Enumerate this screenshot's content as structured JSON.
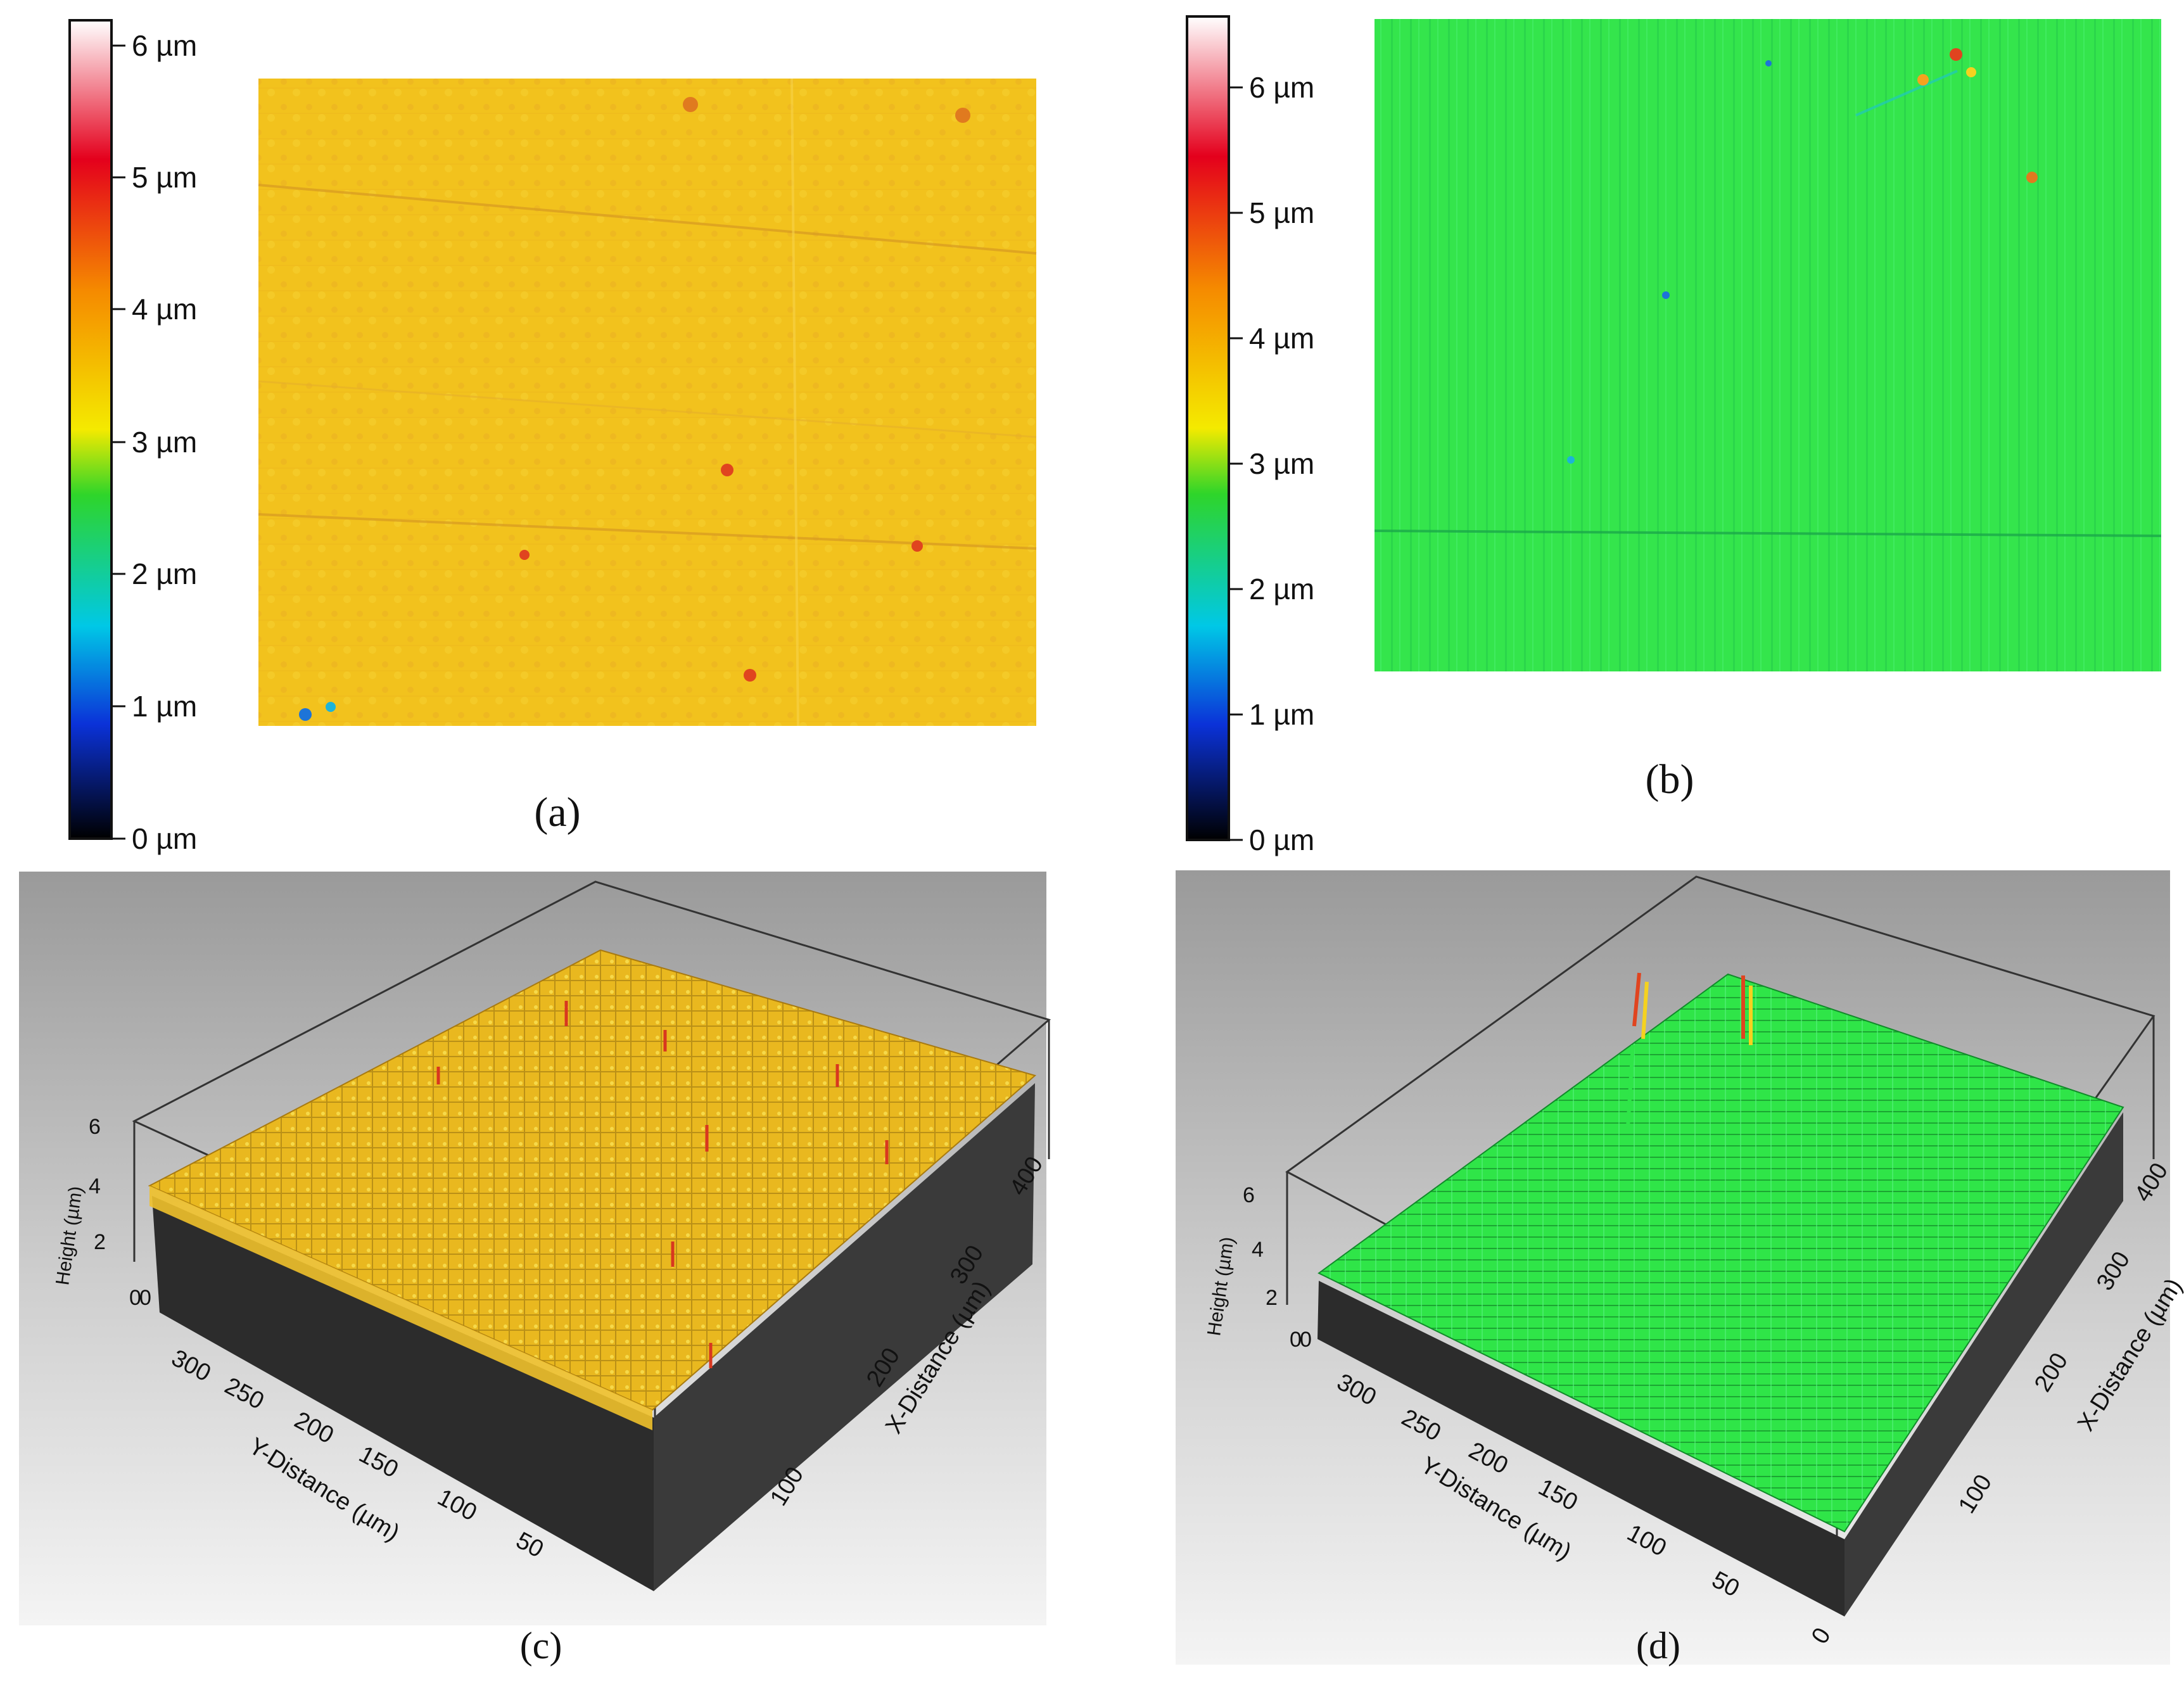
{
  "figure": {
    "panels": [
      {
        "id": "a",
        "caption": "(a)",
        "view": "2D height map",
        "dominant_color": "#f3c11c"
      },
      {
        "id": "b",
        "caption": "(b)",
        "view": "2D height map",
        "dominant_color": "#33e84a"
      },
      {
        "id": "c",
        "caption": "(c)",
        "view": "3D surface plot",
        "dominant_color": "#e8b51b"
      },
      {
        "id": "d",
        "caption": "(d)",
        "view": "3D surface plot",
        "dominant_color": "#2fe548"
      }
    ],
    "colorbar": {
      "tick_labels": [
        "6 µm",
        "5 µm",
        "4 µm",
        "3 µm",
        "2 µm",
        "1 µm",
        "0 µm"
      ],
      "stops": [
        "#ffffff",
        "#e4001c",
        "#f58a00",
        "#f4ea00",
        "#2ed52a",
        "#00c8e6",
        "#0b32d8",
        "#000000"
      ]
    },
    "axes3d": {
      "height_label": "Height (µm)",
      "y_label": "Y-Distance (µm)",
      "x_label": "X-Distance (µm)",
      "height_ticks": [
        "6",
        "4",
        "2",
        "0"
      ],
      "y_ticks": [
        "300",
        "250",
        "200",
        "150",
        "100",
        "50"
      ],
      "x_ticks": [
        "100",
        "200",
        "300",
        "400"
      ],
      "zero": "0"
    }
  }
}
